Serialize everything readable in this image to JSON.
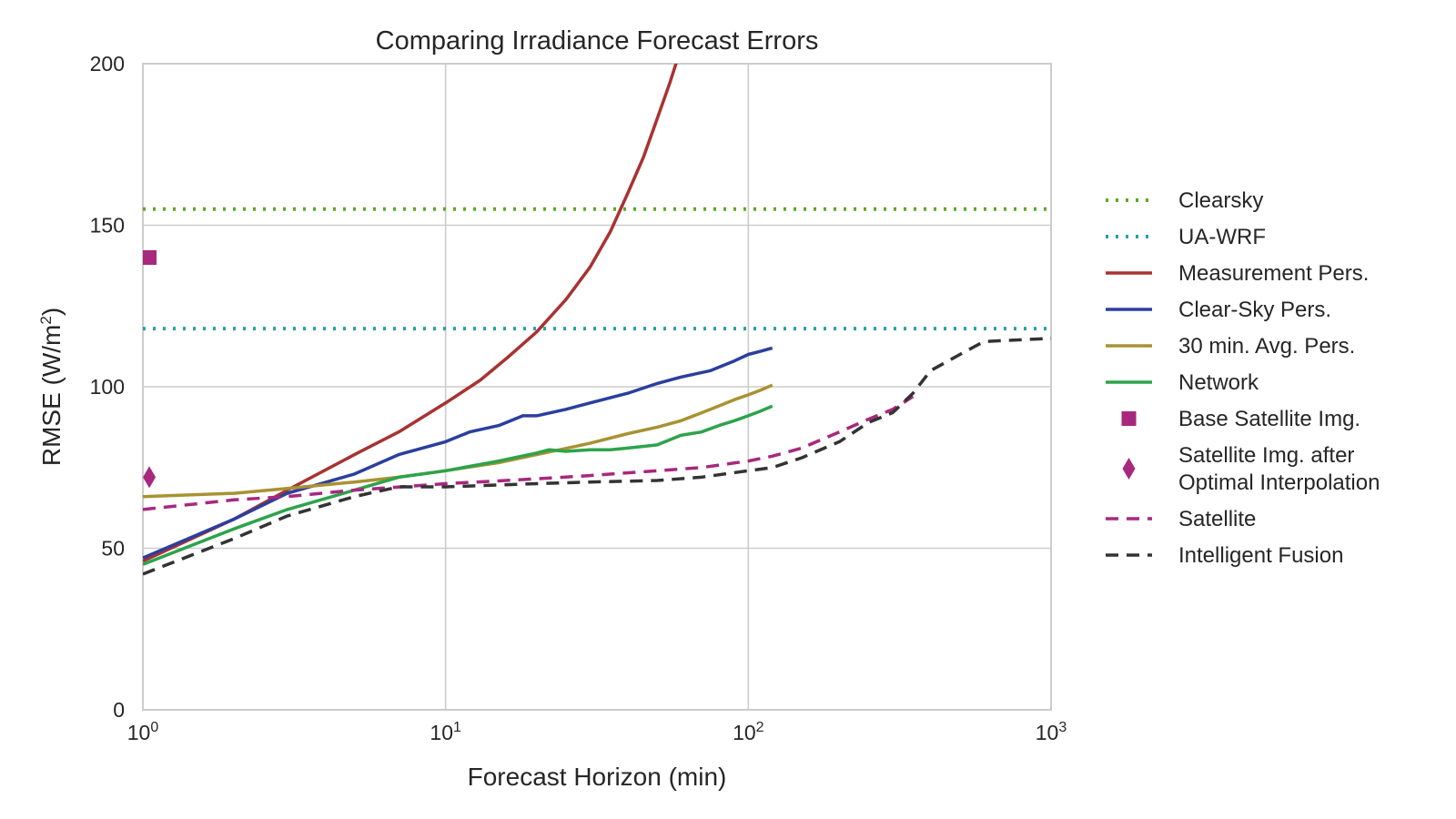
{
  "chart_data": {
    "type": "line",
    "title": "Comparing Irradiance Forecast Errors",
    "xlabel": "Forecast Horizon (min)",
    "ylabel": "RMSE (W/m2)",
    "ylabel_main": "RMSE (W/m",
    "ylabel_sup": "2",
    "ylabel_end": ")",
    "x_scale": "log",
    "xlim": [
      1,
      1000
    ],
    "ylim": [
      0,
      200
    ],
    "grid": true,
    "legend_position": "right",
    "x_ticks": [
      {
        "value": 1,
        "base": "10",
        "exp": "0"
      },
      {
        "value": 10,
        "base": "10",
        "exp": "1"
      },
      {
        "value": 100,
        "base": "10",
        "exp": "2"
      },
      {
        "value": 1000,
        "base": "10",
        "exp": "3"
      }
    ],
    "y_ticks": [
      {
        "value": 0,
        "label": "0"
      },
      {
        "value": 50,
        "label": "50"
      },
      {
        "value": 100,
        "label": "100"
      },
      {
        "value": 150,
        "label": "150"
      },
      {
        "value": 200,
        "label": "200"
      }
    ],
    "series": [
      {
        "name": "Clearsky",
        "style": "dotted",
        "color": "#5ea828",
        "x": [
          1,
          1000
        ],
        "y": [
          155,
          155
        ]
      },
      {
        "name": "UA-WRF",
        "style": "dotted",
        "color": "#2aa0a8",
        "x": [
          1,
          1000
        ],
        "y": [
          118,
          118
        ]
      },
      {
        "name": "Measurement Pers.",
        "style": "solid",
        "color": "#a83232",
        "x": [
          1,
          2,
          3,
          5,
          7,
          10,
          13,
          16,
          20,
          25,
          30,
          35,
          40,
          45,
          50,
          55,
          60
        ],
        "y": [
          46,
          59,
          68,
          79,
          86,
          95,
          102,
          109,
          117,
          127,
          137,
          148,
          160,
          171,
          183,
          194,
          205
        ]
      },
      {
        "name": "Clear-Sky Pers.",
        "style": "solid",
        "color": "#2b3f9e",
        "x": [
          1,
          2,
          3,
          5,
          7,
          10,
          12,
          15,
          18,
          20,
          25,
          30,
          40,
          50,
          60,
          75,
          90,
          100,
          110,
          120
        ],
        "y": [
          47,
          59,
          67,
          73,
          79,
          83,
          86,
          88,
          91,
          91,
          93,
          95,
          98,
          101,
          103,
          105,
          108,
          110,
          111,
          112
        ]
      },
      {
        "name": "30 min. Avg. Pers.",
        "style": "solid",
        "color": "#a89232",
        "x": [
          1,
          2,
          3,
          5,
          7,
          10,
          15,
          20,
          30,
          40,
          50,
          60,
          75,
          90,
          100,
          110,
          120
        ],
        "y": [
          66,
          67,
          68.5,
          70.5,
          72,
          74,
          76.5,
          79,
          82.5,
          85.5,
          87.5,
          89.5,
          93,
          96,
          97.5,
          99,
          100.5
        ]
      },
      {
        "name": "Network",
        "style": "solid",
        "color": "#2ca44a",
        "x": [
          1,
          2,
          3,
          5,
          7,
          10,
          15,
          20,
          22,
          25,
          30,
          35,
          40,
          50,
          60,
          70,
          80,
          90,
          100,
          110,
          120
        ],
        "y": [
          45,
          56,
          62,
          68,
          72,
          74,
          77,
          79.5,
          80.5,
          80,
          80.5,
          80.5,
          81,
          82,
          85,
          86,
          88,
          89.5,
          91,
          92.5,
          94
        ]
      },
      {
        "name": "Base Satellite Img.",
        "style": "marker-square",
        "color": "#a8287e",
        "x": [
          1.05
        ],
        "y": [
          140
        ]
      },
      {
        "name": "Satellite Img. after\nOptimal Interpolation",
        "style": "marker-diamond",
        "color": "#a8287e",
        "x": [
          1.05
        ],
        "y": [
          72
        ]
      },
      {
        "name": "Satellite",
        "style": "dashed",
        "color": "#a8287e",
        "x": [
          1,
          2,
          3,
          5,
          10,
          20,
          30,
          50,
          70,
          100,
          120,
          150,
          200,
          250,
          300,
          350
        ],
        "y": [
          62,
          65,
          66,
          68,
          70,
          71.5,
          72.5,
          74,
          75,
          77,
          78.5,
          81,
          86,
          90,
          93,
          97
        ]
      },
      {
        "name": "Intelligent Fusion",
        "style": "dashed",
        "color": "#333333",
        "x": [
          1,
          2,
          3,
          5,
          7,
          10,
          20,
          30,
          50,
          70,
          100,
          120,
          150,
          200,
          250,
          300,
          350,
          400,
          500,
          600,
          1000
        ],
        "y": [
          42,
          53,
          60,
          66,
          69,
          69,
          70,
          70.5,
          71,
          72,
          74,
          75,
          78,
          83,
          89,
          92,
          98,
          105,
          110,
          114,
          115
        ]
      }
    ]
  }
}
